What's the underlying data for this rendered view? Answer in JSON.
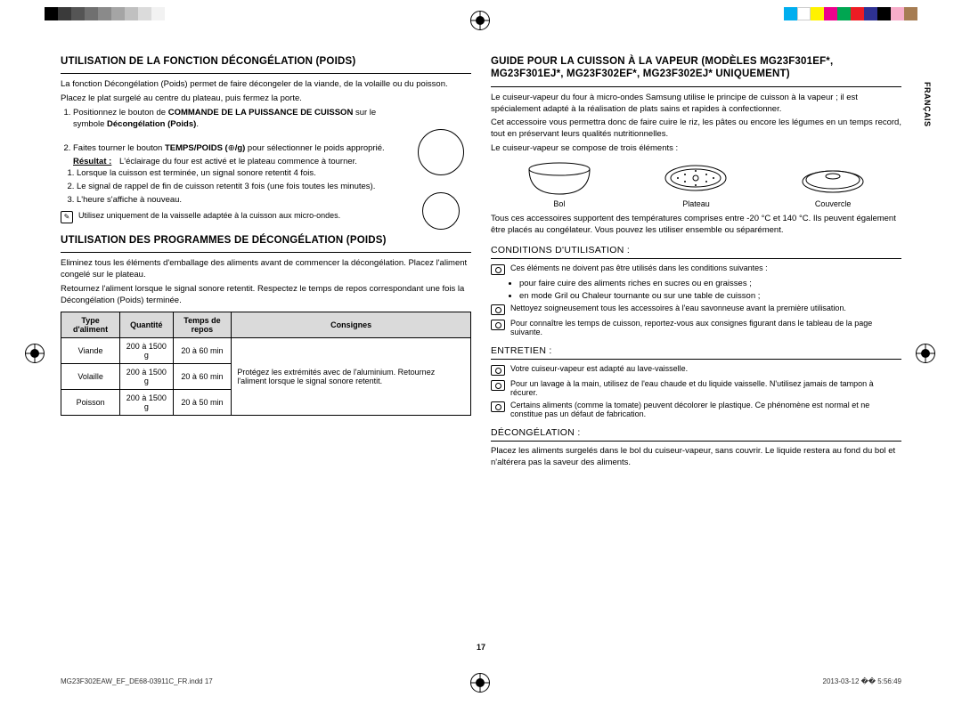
{
  "colors_left": [
    "#000000",
    "#3a3a3a",
    "#555555",
    "#707070",
    "#8a8a8a",
    "#a5a5a5",
    "#c0c0c0",
    "#dbdbdb",
    "#f2f2f2"
  ],
  "colors_right": [
    "#00aeef",
    "#ffffff",
    "#fff200",
    "#ec008c",
    "#00a651",
    "#ed1c24",
    "#2e3192",
    "#000000",
    "#f7adc9",
    "#a67c52"
  ],
  "side_label": "FRANÇAIS",
  "page_number": "17",
  "footer_left": "MG23F302EAW_EF_DE68-03911C_FR.indd   17",
  "footer_right": "2013-03-12   �� 5:56:49",
  "left": {
    "h1": "UTILISATION DE LA FONCTION DÉCONGÉLATION (POIDS)",
    "p1": "La fonction Décongélation (Poids) permet de faire décongeler de la viande, de la volaille ou du poisson.",
    "p2": "Placez le plat surgelé au centre du plateau, puis fermez la porte.",
    "step1a": "Positionnez le bouton de ",
    "step1b": "COMMANDE DE LA PUISSANCE DE CUISSON",
    "step1c": " sur le symbole ",
    "step1d": "Décongélation (Poids)",
    "step1e": ".",
    "step2a": "Faites tourner le bouton ",
    "step2b": "TEMPS/POIDS (",
    "step2c": "/g)",
    "step2d": " pour sélectionner le poids approprié.",
    "res_label": "Résultat :",
    "res_text": "L'éclairage du four est activé et le plateau commence à tourner.",
    "sub1": "Lorsque la cuisson est terminée, un signal sonore retentit 4 fois.",
    "sub2": "Le signal de rappel de fin de cuisson retentit 3 fois (une fois toutes les minutes).",
    "sub3": "L'heure s'affiche à nouveau.",
    "note": "Utilisez uniquement de la vaisselle adaptée à la cuisson aux micro-ondes.",
    "h2": "UTILISATION DES PROGRAMMES DE DÉCONGÉLATION (POIDS)",
    "p3": "Eliminez tous les éléments d'emballage des aliments avant de commencer la décongélation. Placez l'aliment congelé sur le plateau.",
    "p4": "Retournez l'aliment lorsque le signal sonore retentit. Respectez le temps de repos correspondant une fois la Décongélation (Poids) terminée.",
    "table": {
      "headers": [
        "Type d'aliment",
        "Quantité",
        "Temps de repos",
        "Consignes"
      ],
      "rows": [
        [
          "Viande",
          "200 à 1500 g",
          "20 à 60 min"
        ],
        [
          "Volaille",
          "200 à 1500 g",
          "20 à 60 min"
        ],
        [
          "Poisson",
          "200 à 1500 g",
          "20 à 50 min"
        ]
      ],
      "consignes": "Protégez les extrémités avec de l'aluminium. Retournez l'aliment lorsque le signal sonore retentit."
    }
  },
  "right": {
    "h1": "GUIDE POUR LA CUISSON À LA VAPEUR (MODÈLES MG23F301EF*, MG23F301EJ*, MG23F302EF*, MG23F302EJ* UNIQUEMENT)",
    "p1": "Le cuiseur-vapeur du four à micro-ondes Samsung utilise le principe de cuisson à la vapeur ; il est spécialement adapté à la réalisation de plats sains et rapides à confectionner.",
    "p2": "Cet accessoire vous permettra donc de faire cuire le riz, les pâtes ou encore les légumes en un temps record, tout en préservant leurs qualités nutritionnelles.",
    "p3": "Le cuiseur-vapeur se compose de trois éléments :",
    "items": [
      "Bol",
      "Plateau",
      "Couvercle"
    ],
    "p4": "Tous ces accessoires supportent des températures comprises entre -20  °C et 140  °C. Ils peuvent également être placés au congélateur. Vous pouvez les utiliser ensemble ou séparément.",
    "h_cond": "CONDITIONS D'UTILISATION :",
    "cond1": "Ces éléments ne doivent pas être utilisés dans les conditions suivantes :",
    "cond1a": "pour faire cuire des aliments riches en sucres ou en graisses ;",
    "cond1b": "en mode Gril ou Chaleur tournante ou sur une table de cuisson ;",
    "cond2": "Nettoyez soigneusement tous les accessoires à l'eau savonneuse avant la première utilisation.",
    "cond3": "Pour connaître les temps de cuisson, reportez-vous aux consignes figurant dans le tableau de la page suivante.",
    "h_ent": "ENTRETIEN :",
    "ent1": "Votre cuiseur-vapeur est adapté au lave-vaisselle.",
    "ent2": "Pour un lavage à la main, utilisez de l'eau chaude et du liquide vaisselle. N'utilisez jamais de tampon à récurer.",
    "ent3": "Certains aliments (comme la tomate) peuvent décolorer le plastique. Ce phénomène est normal et ne constitue pas un défaut de fabrication.",
    "h_dec": "DÉCONGÉLATION :",
    "dec1": "Placez les aliments surgelés dans le bol du cuiseur-vapeur, sans couvrir. Le liquide restera au fond du bol et n'altérera pas la saveur des aliments."
  }
}
